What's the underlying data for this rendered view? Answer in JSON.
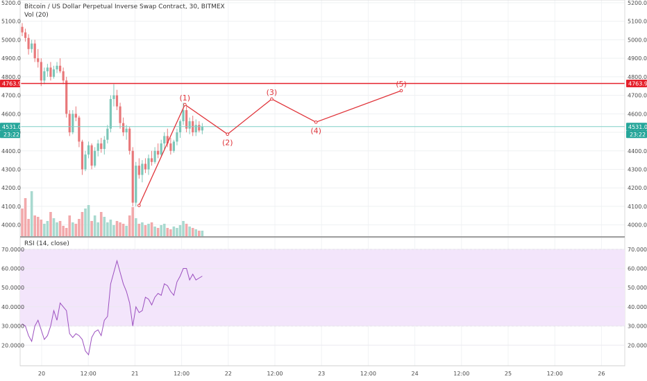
{
  "header": {
    "symbol_title": "Bitcoin / US Dollar Perpetual Inverse Swap Contract, 30, BITMEX",
    "volume_label": "Vol (20)",
    "rsi_label": "RSI (14, close)"
  },
  "colors": {
    "up": "#7cc6b8",
    "down": "#e8787a",
    "vol_up": "#a8d9cf",
    "vol_down": "#f2a9ab",
    "resistance": "#e5212b",
    "wave": "#e0343a",
    "rsi_line": "#9b4fbf",
    "rsi_band": "#f3e5fb",
    "price_badge": "#26a69a",
    "resistance_badge": "#e5212b"
  },
  "badges": {
    "resistance_value": "4763.9",
    "last_price": "4531.0",
    "countdown": "23:22"
  },
  "chart_data": [
    {
      "type": "candlestick",
      "title": "Bitcoin / US Dollar Perpetual Inverse Swap Contract, 30, BITMEX",
      "y_axis": {
        "range": [
          3950,
          5200
        ],
        "ticks": [
          "4000.0",
          "4100.0",
          "4200.0",
          "4300.0",
          "4400.0",
          "4500.0",
          "4600.0",
          "4700.0",
          "4800.0",
          "4900.0",
          "5000.0",
          "5100.0",
          "5200.0"
        ]
      },
      "x_axis": {
        "ticks": [
          "20",
          "12:00",
          "21",
          "12:00",
          "22",
          "12:00",
          "23",
          "12:00",
          "24",
          "12:00",
          "25",
          "12:00",
          "26"
        ]
      },
      "horizontal_line": {
        "value": 4763.9,
        "label": "4763.9"
      },
      "last_price": 4531.0,
      "series": [
        {
          "name": "Price",
          "ohlc": [
            [
              5070,
              5090,
              5020,
              5040
            ],
            [
              5040,
              5060,
              4990,
              5010
            ],
            [
              5010,
              5030,
              4920,
              4950
            ],
            [
              4950,
              5000,
              4930,
              4980
            ],
            [
              4980,
              5000,
              4880,
              4900
            ],
            [
              4900,
              4950,
              4850,
              4880
            ],
            [
              4880,
              4900,
              4750,
              4780
            ],
            [
              4780,
              4850,
              4760,
              4830
            ],
            [
              4830,
              4870,
              4800,
              4850
            ],
            [
              4850,
              4880,
              4780,
              4800
            ],
            [
              4800,
              4860,
              4790,
              4840
            ],
            [
              4840,
              4880,
              4820,
              4860
            ],
            [
              4860,
              4900,
              4820,
              4830
            ],
            [
              4830,
              4850,
              4760,
              4780
            ],
            [
              4780,
              4800,
              4580,
              4600
            ],
            [
              4600,
              4620,
              4480,
              4500
            ],
            [
              4500,
              4620,
              4490,
              4600
            ],
            [
              4600,
              4640,
              4560,
              4580
            ],
            [
              4580,
              4590,
              4420,
              4450
            ],
            [
              4450,
              4460,
              4270,
              4300
            ],
            [
              4300,
              4400,
              4290,
              4380
            ],
            [
              4380,
              4450,
              4360,
              4430
            ],
            [
              4430,
              4440,
              4300,
              4320
            ],
            [
              4320,
              4420,
              4310,
              4400
            ],
            [
              4400,
              4460,
              4370,
              4440
            ],
            [
              4440,
              4470,
              4390,
              4410
            ],
            [
              4410,
              4480,
              4380,
              4460
            ],
            [
              4460,
              4540,
              4440,
              4520
            ],
            [
              4520,
              4700,
              4500,
              4680
            ],
            [
              4680,
              4760,
              4640,
              4700
            ],
            [
              4700,
              4730,
              4620,
              4640
            ],
            [
              4640,
              4660,
              4520,
              4550
            ],
            [
              4550,
              4580,
              4480,
              4500
            ],
            [
              4500,
              4540,
              4460,
              4520
            ],
            [
              4520,
              4530,
              4380,
              4400
            ],
            [
              4400,
              4420,
              4100,
              4120
            ],
            [
              4120,
              4340,
              4100,
              4320
            ],
            [
              4320,
              4360,
              4250,
              4270
            ],
            [
              4270,
              4350,
              4230,
              4330
            ],
            [
              4330,
              4360,
              4280,
              4300
            ],
            [
              4300,
              4380,
              4270,
              4360
            ],
            [
              4360,
              4400,
              4320,
              4340
            ],
            [
              4340,
              4420,
              4330,
              4400
            ],
            [
              4400,
              4440,
              4360,
              4380
            ],
            [
              4380,
              4460,
              4370,
              4440
            ],
            [
              4440,
              4500,
              4410,
              4480
            ],
            [
              4480,
              4520,
              4420,
              4440
            ],
            [
              4440,
              4470,
              4380,
              4400
            ],
            [
              4400,
              4460,
              4390,
              4450
            ],
            [
              4450,
              4520,
              4430,
              4500
            ],
            [
              4500,
              4570,
              4470,
              4560
            ],
            [
              4560,
              4660,
              4540,
              4620
            ],
            [
              4620,
              4640,
              4500,
              4520
            ],
            [
              4520,
              4580,
              4490,
              4560
            ],
            [
              4560,
              4590,
              4480,
              4500
            ],
            [
              4500,
              4570,
              4480,
              4540
            ],
            [
              4540,
              4560,
              4500,
              4510
            ],
            [
              4510,
              4550,
              4490,
              4531
            ]
          ]
        },
        {
          "name": "Elliott wave projection",
          "points": [
            {
              "label": "",
              "i": 37.0,
              "y": 4105
            },
            {
              "label": "(1)",
              "i": 51.5,
              "y": 4650
            },
            {
              "label": "(2)",
              "i": 65.0,
              "y": 4490
            },
            {
              "label": "(3)",
              "i": 79.0,
              "y": 4680
            },
            {
              "label": "(4)",
              "i": 93.0,
              "y": 4555
            },
            {
              "label": "(5)",
              "i": 120.0,
              "y": 4725
            }
          ]
        }
      ]
    },
    {
      "type": "bar",
      "title": "Vol (20)",
      "series": [
        {
          "name": "Volume",
          "values": [
            40,
            55,
            25,
            65,
            30,
            28,
            24,
            18,
            22,
            35,
            26,
            20,
            22,
            15,
            12,
            30,
            20,
            18,
            25,
            35,
            40,
            45,
            22,
            30,
            20,
            35,
            28,
            20,
            24,
            16,
            22,
            20,
            18,
            15,
            30,
            42,
            26,
            18,
            20,
            16,
            18,
            20,
            14,
            12,
            16,
            18,
            12,
            10,
            14,
            12,
            16,
            22,
            18,
            14,
            12,
            10,
            8,
            8
          ]
        }
      ]
    },
    {
      "type": "line",
      "title": "RSI (14, close)",
      "y_axis": {
        "range": [
          10,
          75
        ],
        "ticks": [
          "20.0000",
          "30.0000",
          "40.0000",
          "50.0000",
          "60.0000",
          "70.0000"
        ]
      },
      "band": [
        30,
        70
      ],
      "series": [
        {
          "name": "RSI",
          "values": [
            31,
            30,
            25,
            22,
            30,
            33,
            28,
            23,
            25,
            30,
            38,
            33,
            42,
            40,
            38,
            26,
            24,
            26,
            25,
            23,
            17,
            15,
            24,
            27,
            28,
            25,
            33,
            35,
            52,
            58,
            64,
            58,
            52,
            48,
            42,
            30,
            40,
            37,
            38,
            45,
            44,
            41,
            45,
            47,
            46,
            52,
            51,
            48,
            46,
            53,
            56,
            60,
            60,
            54,
            57,
            54,
            55,
            56
          ]
        }
      ]
    }
  ]
}
